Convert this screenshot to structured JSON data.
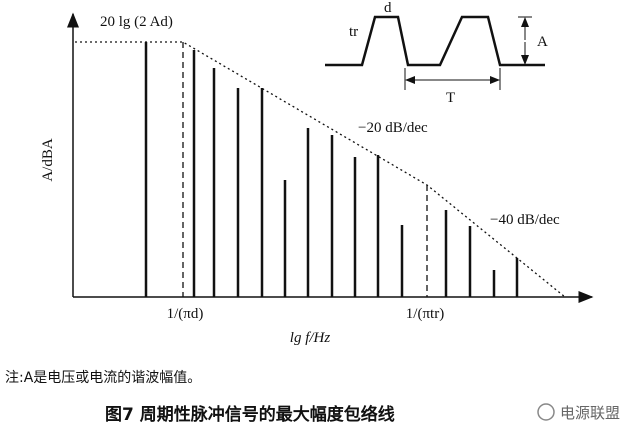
{
  "figure": {
    "y_axis_label": "A/dBA",
    "x_axis_label": "lg f/Hz",
    "top_level_label": "20 lg (2 Ad)",
    "corner_1_label": "1/(πd)",
    "corner_2_label": "1/(πtr)",
    "slope_1_label": "−20 dB/dec",
    "slope_2_label": "−40 dB/dec",
    "inset": {
      "rise_label": "tr",
      "width_label": "d",
      "amplitude_label": "A",
      "period_label": "T"
    }
  },
  "note": "注:A是电压或电流的谐波幅值。",
  "caption": "图7  周期性脉冲信号的最大幅度包络线",
  "watermark": "电源联盟"
}
